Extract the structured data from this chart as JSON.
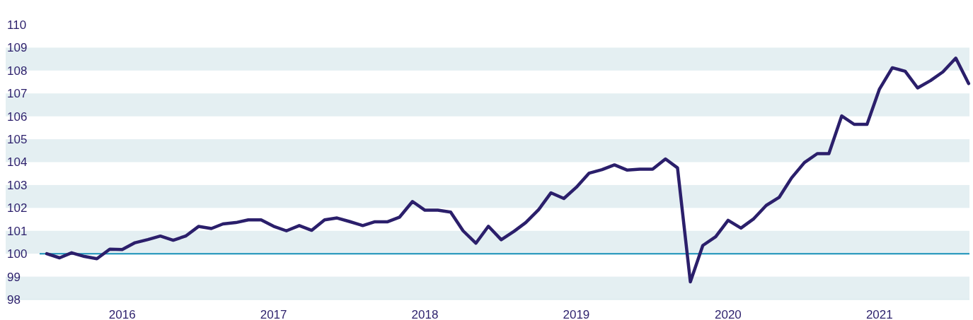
{
  "chart_data": {
    "type": "line",
    "x": [
      "2016-01",
      "2016-02",
      "2016-03",
      "2016-04",
      "2016-05",
      "2016-06",
      "2016-07",
      "2016-08",
      "2016-09",
      "2016-10",
      "2016-11",
      "2016-12",
      "2017-01",
      "2017-02",
      "2017-03",
      "2017-04",
      "2017-05",
      "2017-06",
      "2017-07",
      "2017-08",
      "2017-09",
      "2017-10",
      "2017-11",
      "2017-12",
      "2018-01",
      "2018-02",
      "2018-03",
      "2018-04",
      "2018-05",
      "2018-06",
      "2018-07",
      "2018-08",
      "2018-09",
      "2018-10",
      "2018-11",
      "2018-12",
      "2019-01",
      "2019-02",
      "2019-03",
      "2019-04",
      "2019-05",
      "2019-06",
      "2019-07",
      "2019-08",
      "2019-09",
      "2019-10",
      "2019-11",
      "2019-12",
      "2020-01",
      "2020-02",
      "2020-03",
      "2020-04",
      "2020-05",
      "2020-06",
      "2020-07",
      "2020-08",
      "2020-09",
      "2020-10",
      "2020-11",
      "2020-12",
      "2021-01",
      "2021-02",
      "2021-03",
      "2021-04",
      "2021-05",
      "2021-06",
      "2021-07",
      "2021-08",
      "2021-09",
      "2021-10",
      "2021-11",
      "2021-12",
      "2022-01",
      "2022-02"
    ],
    "series": [
      {
        "color": "#2b1f6b",
        "values": [
          100.0,
          99.82,
          100.04,
          99.88,
          99.78,
          100.2,
          100.18,
          100.48,
          100.62,
          100.77,
          100.59,
          100.77,
          101.19,
          101.1,
          101.3,
          101.36,
          101.48,
          101.48,
          101.2,
          101.0,
          101.23,
          101.02,
          101.48,
          101.56,
          101.4,
          101.23,
          101.39,
          101.39,
          101.6,
          102.28,
          101.9,
          101.9,
          101.82,
          101.0,
          100.46,
          101.2,
          100.61,
          100.98,
          101.36,
          101.92,
          102.66,
          102.41,
          102.9,
          103.52,
          103.67,
          103.88,
          103.65,
          103.69,
          103.69,
          104.14,
          103.75,
          98.77,
          100.36,
          100.74,
          101.46,
          101.12,
          101.53,
          102.11,
          102.46,
          103.31,
          103.98,
          104.37,
          104.37,
          106.02,
          105.65,
          105.65,
          107.19,
          108.12,
          107.97,
          107.24,
          107.56,
          107.94,
          108.54,
          107.43
        ]
      }
    ],
    "xticks": [
      {
        "value": "2016-07",
        "label": "2016"
      },
      {
        "value": "2017-07",
        "label": "2017"
      },
      {
        "value": "2018-07",
        "label": "2018"
      },
      {
        "value": "2019-07",
        "label": "2019"
      },
      {
        "value": "2020-07",
        "label": "2020"
      },
      {
        "value": "2021-07",
        "label": "2021"
      }
    ],
    "xlim": [
      "2015-09-24",
      "2022-02-03"
    ],
    "ylim": [
      98,
      110
    ],
    "yticks": [
      98,
      99,
      100,
      101,
      102,
      103,
      104,
      105,
      106,
      107,
      108,
      109,
      110
    ],
    "grid": false,
    "marker": "none",
    "line_style": "solid",
    "ref_lines": [
      {
        "axis": "y",
        "value": 100,
        "color": "#1790b8"
      }
    ],
    "bands": [
      {
        "axis": "y",
        "from": 98,
        "to": 99,
        "color": "#e4eff2"
      },
      {
        "axis": "y",
        "from": 100,
        "to": 101,
        "color": "#e4eff2"
      },
      {
        "axis": "y",
        "from": 102,
        "to": 103,
        "color": "#e4eff2"
      },
      {
        "axis": "y",
        "from": 104,
        "to": 105,
        "color": "#e4eff2"
      },
      {
        "axis": "y",
        "from": 106,
        "to": 107,
        "color": "#e4eff2"
      },
      {
        "axis": "y",
        "from": 108,
        "to": 109,
        "color": "#e4eff2"
      }
    ]
  }
}
